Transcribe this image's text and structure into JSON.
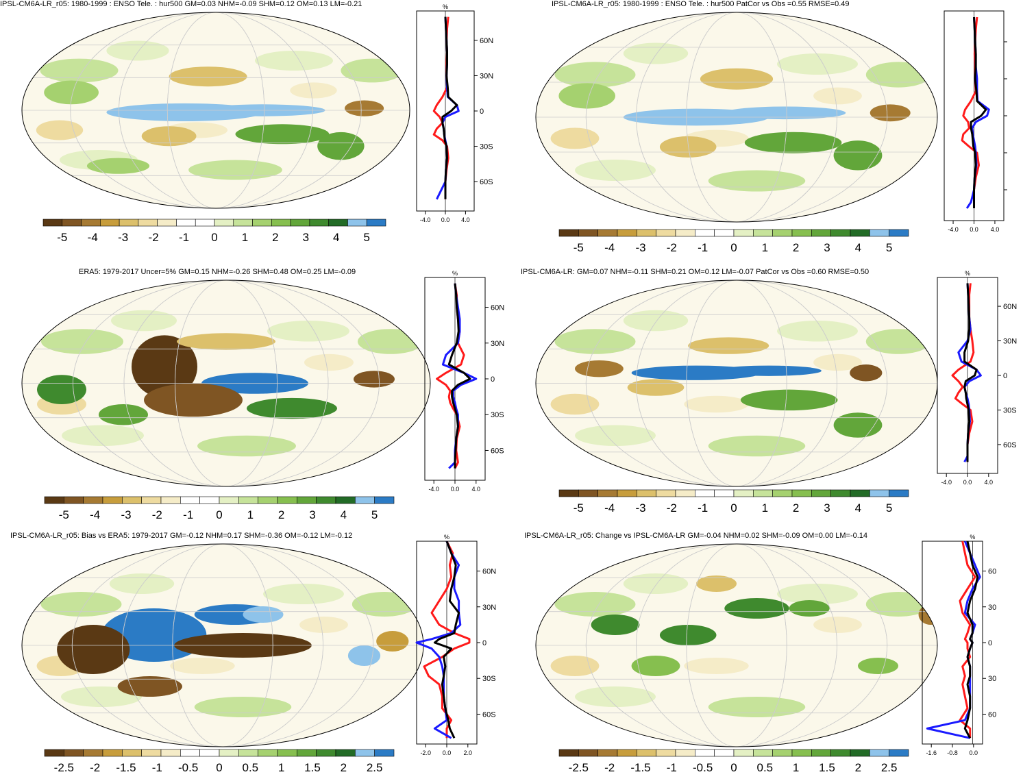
{
  "colors": {
    "scale": [
      "#5a3914",
      "#7f5523",
      "#a67a33",
      "#c79d3c",
      "#dcc06b",
      "#eedba0",
      "#f5ecc8",
      "#ffffff",
      "#ffffff",
      "#e4f0c4",
      "#c6e39a",
      "#a5d16f",
      "#86bf4f",
      "#62a63a",
      "#3f8a2e",
      "#226b26",
      "#8ec3ea",
      "#2b7bc5"
    ],
    "obs": "#000000",
    "red": "#ff1a1a",
    "blue": "#1a1aff"
  },
  "panels": [
    {
      "id": "p1",
      "title": "IPSL-CM6A-LR_r05: 1980-1999 : ENSO Tele. : hur500 GM=0.03 NHM=-0.09 SHM=0.12 OM=0.13 LM=-0.21",
      "colorbar_labels": [
        "-5",
        "-4",
        "-3",
        "-2",
        "-1",
        "0",
        "1",
        "2",
        "3",
        "4",
        "5"
      ],
      "profile": {
        "unit": "%",
        "lat_labels": [
          "60N",
          "30N",
          "0",
          "30S",
          "60S"
        ],
        "x_ticks": [
          "-4.0",
          "0.0",
          "4.0"
        ],
        "xlim": [
          -5,
          5
        ],
        "lat": [
          80,
          70,
          60,
          50,
          40,
          30,
          20,
          12,
          5,
          0,
          -5,
          -10,
          -15,
          -20,
          -25,
          -30,
          -40,
          -50,
          -60,
          -70,
          -75
        ],
        "black": [
          0,
          0.1,
          0.2,
          0.3,
          0.3,
          0.2,
          0.4,
          0.5,
          2.0,
          1.0,
          -0.5,
          -0.5,
          -0.3,
          -0.2,
          -0.1,
          0.2,
          0.3,
          0.1,
          0,
          0,
          0
        ],
        "blue": [
          0,
          0.1,
          0.2,
          0.3,
          0.3,
          0.2,
          0.3,
          0.4,
          2.0,
          2.3,
          0.0,
          -0.5,
          -0.3,
          -0.2,
          0,
          0.2,
          0.3,
          0.1,
          0,
          -1.0,
          -1.5
        ],
        "red": [
          0.5,
          0.3,
          0.2,
          0.3,
          0.2,
          0.2,
          0.3,
          -0.5,
          -1.5,
          -2.0,
          -1.0,
          -0.5,
          -1.5,
          -2.0,
          -0.5,
          0.3,
          0.5,
          0.2,
          0,
          0,
          0
        ]
      }
    },
    {
      "id": "p2",
      "title": "IPSL-CM6A-LR_r05: 1980-1999 : ENSO Tele. : hur500 PatCor vs Obs =0.55 RMSE=0.49",
      "colorbar_labels": [
        "-5",
        "-4",
        "-3",
        "-2",
        "-1",
        "0",
        "1",
        "2",
        "3",
        "4",
        "5"
      ],
      "profile": {
        "unit": "",
        "lat_labels": [
          "",
          "",
          "",
          "",
          ""
        ],
        "x_ticks": [
          "-4.0",
          "0.0",
          "4.0"
        ],
        "xlim": [
          -5,
          5
        ],
        "lat": [
          80,
          70,
          60,
          50,
          40,
          30,
          20,
          12,
          5,
          0,
          -5,
          -10,
          -15,
          -20,
          -25,
          -30,
          -40,
          -50,
          -60,
          -70,
          -75
        ],
        "black": [
          0,
          0.1,
          0.2,
          0.3,
          0.3,
          0.2,
          0.4,
          0.5,
          2.0,
          1.2,
          -0.5,
          -0.5,
          -0.3,
          -0.2,
          -0.1,
          0.2,
          0.3,
          0.1,
          0,
          0,
          0
        ],
        "blue": [
          0,
          0.1,
          0.2,
          0.3,
          0.3,
          0.5,
          0.5,
          0.6,
          2.5,
          2.2,
          0.3,
          -0.3,
          -0.2,
          0,
          0.2,
          0.3,
          0.4,
          0.1,
          0,
          -0.5,
          -1.2
        ],
        "red": [
          0.5,
          0.3,
          0.2,
          0.1,
          0.2,
          0.2,
          0.3,
          -0.5,
          -1.5,
          -1.8,
          -1.0,
          -0.8,
          -1.8,
          -2.0,
          -0.8,
          0.5,
          0.8,
          0.3,
          0,
          0,
          0
        ]
      }
    },
    {
      "id": "p3",
      "title": "ERA5: 1979-2017 Uncer=5% GM=0.15 NHM=-0.26 SHM=0.48 OM=0.25 LM=-0.09",
      "colorbar_labels": [
        "-5",
        "-4",
        "-3",
        "-2",
        "-1",
        "0",
        "1",
        "2",
        "3",
        "4",
        "5"
      ],
      "profile": {
        "unit": "%",
        "lat_labels": [
          "60N",
          "30N",
          "0",
          "30S",
          "60S"
        ],
        "x_ticks": [
          "-4.0",
          "0.0",
          "4.0"
        ],
        "xlim": [
          -5,
          5
        ],
        "lat": [
          80,
          70,
          60,
          50,
          40,
          30,
          20,
          12,
          5,
          0,
          -5,
          -10,
          -15,
          -20,
          -25,
          -30,
          -40,
          -50,
          -60,
          -70,
          -75
        ],
        "black": [
          0,
          0.2,
          0.3,
          0.5,
          0.6,
          0.3,
          -0.5,
          -1.0,
          1.5,
          2.5,
          0.5,
          -0.5,
          -0.5,
          -0.3,
          0,
          0.3,
          0.5,
          0.2,
          0.1,
          0,
          0
        ],
        "blue": [
          0,
          0.2,
          0.5,
          0.8,
          0.8,
          0.5,
          -1.5,
          -2.0,
          1.5,
          3.5,
          1.0,
          -0.3,
          -0.3,
          0,
          0.2,
          0.5,
          0.5,
          0.2,
          0,
          0,
          -1.0
        ],
        "red": [
          0,
          0.3,
          0.3,
          0.5,
          0.8,
          0.5,
          1.5,
          1.0,
          -1.5,
          -3.0,
          -1.5,
          -0.8,
          -1.0,
          -0.8,
          -0.3,
          0.3,
          0.8,
          0.3,
          0.2,
          0.5,
          0
        ]
      }
    },
    {
      "id": "p4",
      "title": "IPSL-CM6A-LR: GM=0.07 NHM=-0.11 SHM=0.21 OM=0.12 LM=-0.07 PatCor vs Obs =0.60 RMSE=0.50",
      "colorbar_labels": [
        "-5",
        "-4",
        "-3",
        "-2",
        "-1",
        "0",
        "1",
        "2",
        "3",
        "4",
        "5"
      ],
      "profile": {
        "unit": "%",
        "lat_labels": [
          "60N",
          "30N",
          "0",
          "30S",
          "60S"
        ],
        "x_ticks": [
          "-4.0",
          "0.0",
          "4.0"
        ],
        "xlim": [
          -5,
          5
        ],
        "lat": [
          80,
          70,
          60,
          50,
          40,
          30,
          20,
          12,
          5,
          0,
          -5,
          -10,
          -15,
          -20,
          -25,
          -30,
          -40,
          -50,
          -60,
          -70,
          -75
        ],
        "black": [
          0,
          0.1,
          0.2,
          0.3,
          0.3,
          0.1,
          -0.5,
          -0.5,
          1.5,
          1.2,
          -0.3,
          -0.5,
          -0.3,
          -0.2,
          0,
          0.2,
          0.3,
          0.1,
          0,
          0,
          0
        ],
        "blue": [
          0,
          0.1,
          0.2,
          0.3,
          0.5,
          0.0,
          -1.5,
          -1.0,
          1.5,
          2.2,
          0.3,
          -0.5,
          -0.3,
          0,
          0.2,
          0.3,
          0.4,
          0.1,
          0,
          0,
          -0.5
        ],
        "red": [
          0.5,
          0.3,
          0.3,
          0.3,
          0.5,
          0.8,
          1.0,
          0.5,
          -1.5,
          -2.5,
          -1.5,
          -0.8,
          -1.5,
          -2.0,
          -0.8,
          0.5,
          0.8,
          0.3,
          0,
          0,
          0
        ]
      }
    },
    {
      "id": "p5",
      "title": "IPSL-CM6A-LR_r05: Bias vs ERA5: 1979-2017 GM=-0.12 NHM=0.17 SHM=-0.36 OM=-0.12 LM=-0.12",
      "colorbar_labels": [
        "-2.5",
        "-2",
        "-1.5",
        "-1",
        "-0.5",
        "0",
        "0.5",
        "1",
        "1.5",
        "2",
        "2.5"
      ],
      "profile": {
        "unit": "%",
        "lat_labels": [
          "60N",
          "30N",
          "0",
          "30S",
          "60S"
        ],
        "x_ticks": [
          "-2.0",
          "0.0",
          "2.0"
        ],
        "xlim": [
          -2,
          2
        ],
        "lat": [
          85,
          75,
          65,
          55,
          45,
          35,
          25,
          15,
          8,
          3,
          0,
          -5,
          -12,
          -20,
          -28,
          -35,
          -45,
          -55,
          -65,
          -72,
          -80
        ],
        "black": [
          0,
          0.3,
          0.6,
          0.5,
          0.3,
          0.2,
          0.8,
          0.6,
          0.5,
          -0.5,
          -0.8,
          0.3,
          -0.2,
          -0.1,
          -0.2,
          -0.3,
          -0.2,
          -0.1,
          0.1,
          0.2,
          0.5
        ],
        "blue": [
          0,
          0.3,
          0.8,
          0.5,
          0.5,
          0.8,
          0.8,
          0.9,
          0.3,
          -1.0,
          -2.0,
          -1.0,
          -0.5,
          -0.3,
          -0.2,
          -0.2,
          -0.2,
          -0.1,
          0,
          -0.8,
          0.3
        ],
        "red": [
          0,
          0.4,
          0.2,
          0.3,
          0.0,
          -0.5,
          -1.0,
          -0.5,
          0.5,
          1.5,
          1.5,
          0.5,
          -0.3,
          -1.5,
          -1.2,
          -0.5,
          -0.3,
          -0.3,
          0.3,
          0,
          0
        ]
      }
    },
    {
      "id": "p6",
      "title": "IPSL-CM6A-LR_r05: Change vs IPSL-CM6A-LR GM=-0.04 NHM=0.02 SHM=-0.09 OM=0.00 LM=-0.14",
      "colorbar_labels": [
        "-2.5",
        "-2",
        "-1.5",
        "-1",
        "-0.5",
        "0",
        "0.5",
        "1",
        "1.5",
        "2",
        "2.5"
      ],
      "profile": {
        "unit": "%",
        "lat_labels": [
          "60",
          "30",
          "0",
          "30",
          "60"
        ],
        "x_ticks": [
          "-1.6",
          "-0.8",
          "0.0"
        ],
        "xlim": [
          -2.0,
          0.4
        ],
        "lat": [
          85,
          75,
          65,
          55,
          45,
          35,
          25,
          15,
          8,
          3,
          0,
          -5,
          -12,
          -20,
          -28,
          -35,
          -45,
          -55,
          -65,
          -72,
          -80
        ],
        "black": [
          -0.2,
          -0.1,
          0.0,
          0.2,
          0.1,
          -0.1,
          -0.2,
          0.0,
          0.0,
          -0.1,
          0.0,
          -0.1,
          -0.2,
          -0.1,
          -0.1,
          -0.2,
          -0.1,
          -0.1,
          -0.2,
          -0.3,
          -0.1
        ],
        "blue": [
          -0.3,
          -0.1,
          0.1,
          0.3,
          0.0,
          -0.2,
          -0.3,
          0.1,
          0.0,
          -0.1,
          0.0,
          -0.1,
          -0.2,
          -0.1,
          -0.1,
          -0.1,
          -0.1,
          -0.1,
          -0.3,
          -1.8,
          -0.1
        ],
        "red": [
          -0.4,
          -0.3,
          -0.2,
          0.1,
          -0.2,
          -0.5,
          -0.4,
          -0.1,
          -0.2,
          -0.3,
          -0.2,
          -0.2,
          -0.1,
          -0.4,
          -0.3,
          -0.4,
          -0.3,
          -0.2,
          -0.5,
          -0.1,
          -0.1
        ]
      }
    }
  ],
  "chart_data": [
    {
      "type": "line",
      "title": "IPSL-CM6A-LR_r05: 1980-1999 : ENSO Tele. : hur500 GM=0.03 NHM=-0.09 SHM=0.12 OM=0.13 LM=-0.21",
      "xlabel": "%",
      "ylabel": "",
      "xlim": [
        -5,
        5
      ],
      "colorbar_range": [
        -5,
        5
      ]
    },
    {
      "type": "line",
      "title": "IPSL-CM6A-LR_r05: 1980-1999 : ENSO Tele. : hur500 PatCor vs Obs =0.55 RMSE=0.49",
      "xlabel": "",
      "ylabel": "",
      "xlim": [
        -5,
        5
      ],
      "colorbar_range": [
        -5,
        5
      ]
    },
    {
      "type": "line",
      "title": "ERA5: 1979-2017 Uncer=5% GM=0.15 NHM=-0.26 SHM=0.48 OM=0.25 LM=-0.09",
      "xlabel": "%",
      "ylabel": "",
      "xlim": [
        -5,
        5
      ],
      "colorbar_range": [
        -5,
        5
      ]
    },
    {
      "type": "line",
      "title": "IPSL-CM6A-LR: GM=0.07 NHM=-0.11 SHM=0.21 OM=0.12 LM=-0.07 PatCor vs Obs =0.60 RMSE=0.50",
      "xlabel": "%",
      "ylabel": "",
      "xlim": [
        -5,
        5
      ],
      "colorbar_range": [
        -5,
        5
      ]
    },
    {
      "type": "line",
      "title": "IPSL-CM6A-LR_r05: Bias vs ERA5: 1979-2017 GM=-0.12 NHM=0.17 SHM=-0.36 OM=-0.12 LM=-0.12",
      "xlabel": "%",
      "ylabel": "",
      "xlim": [
        -2,
        2
      ],
      "colorbar_range": [
        -2.5,
        2.5
      ]
    },
    {
      "type": "line",
      "title": "IPSL-CM6A-LR_r05: Change vs IPSL-CM6A-LR GM=-0.04 NHM=0.02 SHM=-0.09 OM=0.00 LM=-0.14",
      "xlabel": "%",
      "ylabel": "",
      "xlim": [
        -2.0,
        0.4
      ],
      "colorbar_range": [
        -2.5,
        2.5
      ]
    }
  ]
}
